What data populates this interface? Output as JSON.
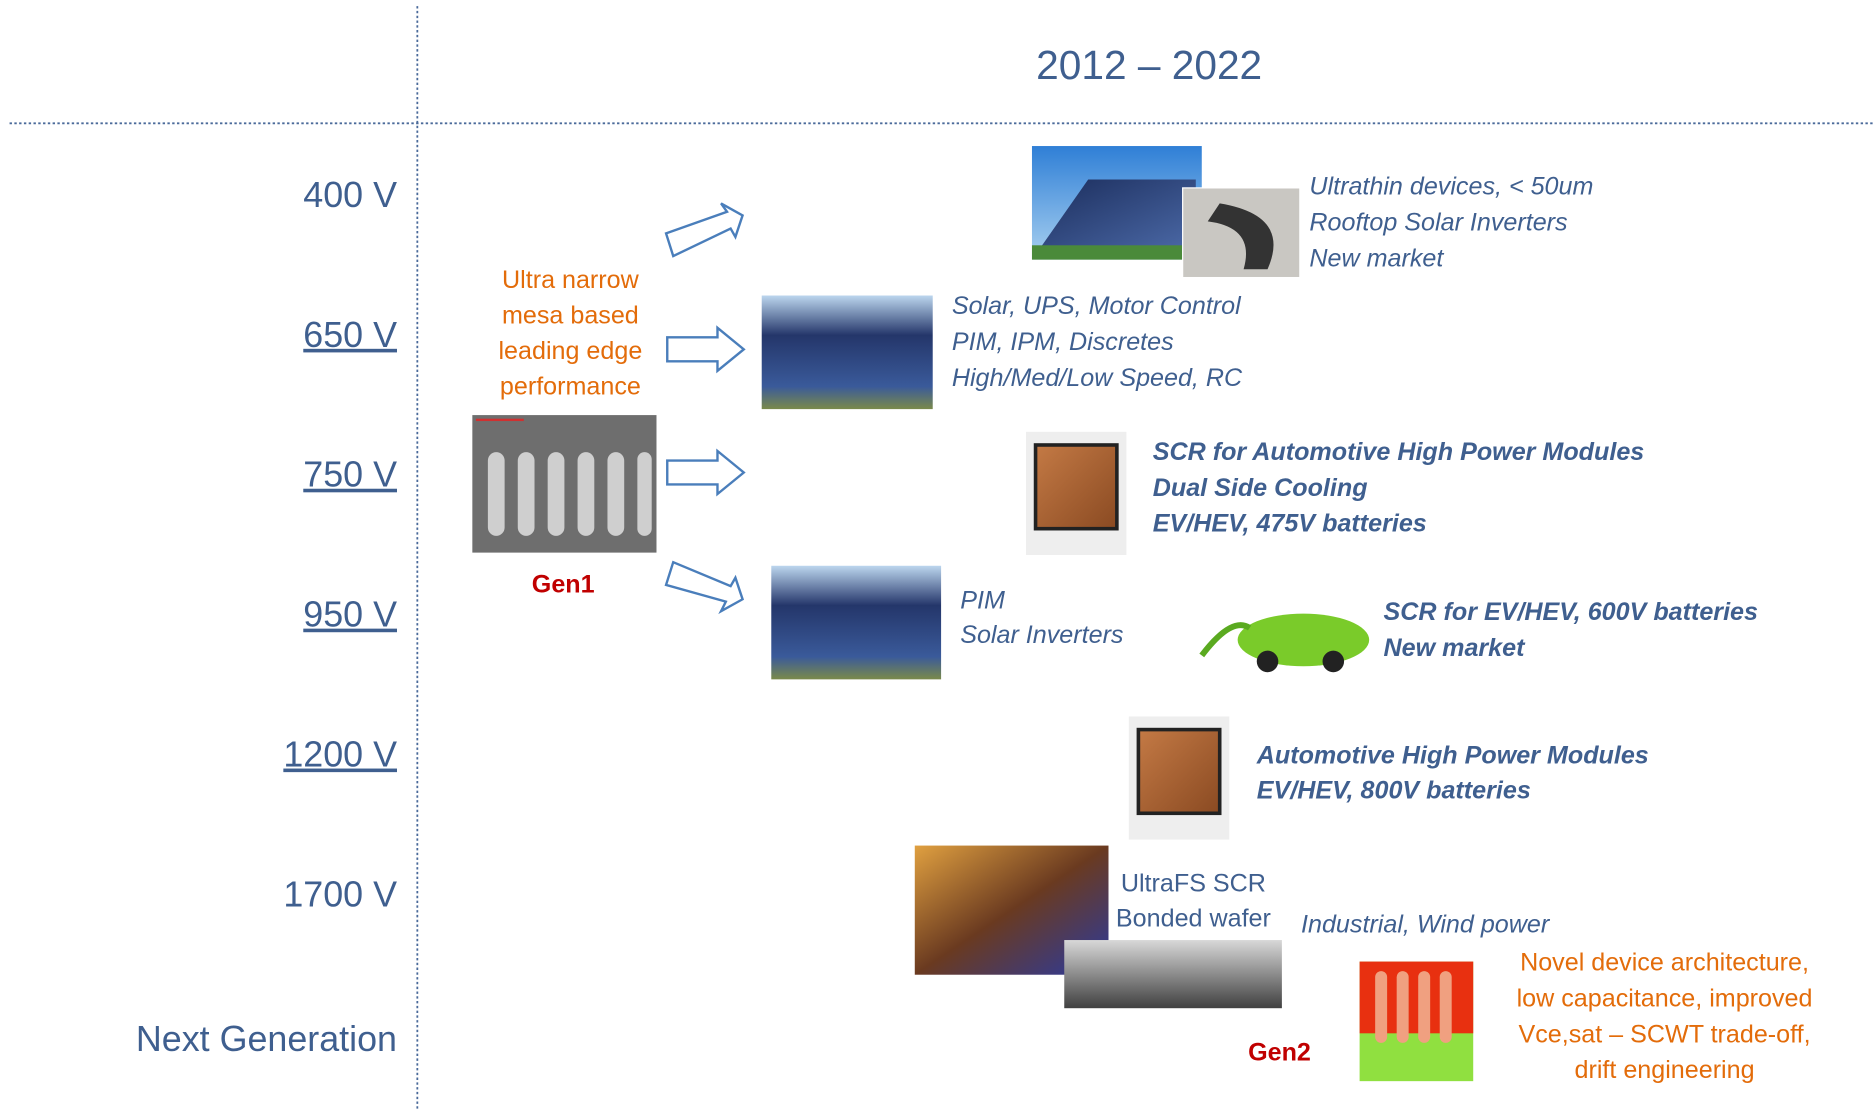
{
  "header": {
    "title": "2012 – 2022"
  },
  "voltages": [
    "400 V",
    "650 V",
    "750 V",
    "950 V",
    "1200 V",
    "1700 V",
    "Next Generation"
  ],
  "gen1": {
    "label": "Gen1",
    "description": [
      "Ultra narrow",
      "mesa based",
      "leading edge",
      "performance"
    ]
  },
  "applications": [
    {
      "lines": [
        "Ultrathin devices, < 50um",
        "Rooftop Solar Inverters",
        "New market"
      ]
    },
    {
      "lines": [
        "Solar, UPS, Motor Control",
        "PIM, IPM, Discretes",
        "High/Med/Low Speed, RC"
      ]
    },
    {
      "lines": [
        "SCR for Automotive High Power Modules",
        "Dual Side Cooling",
        "EV/HEV, 475V batteries"
      ]
    },
    {
      "lines": [
        "PIM",
        "Solar Inverters"
      ]
    },
    {
      "lines": [
        "SCR for EV/HEV, 600V batteries",
        "New market"
      ]
    },
    {
      "lines": [
        "Automotive High Power Modules",
        "EV/HEV, 800V batteries"
      ]
    },
    {
      "lines": [
        "UltraFS SCR",
        "Bonded wafer"
      ]
    },
    {
      "lines": [
        "Industrial, Wind power"
      ]
    }
  ],
  "gen2": {
    "label": "Gen2",
    "description": [
      "Novel device architecture,",
      "low capacitance, improved",
      "Vce,sat – SCWT trade-off,",
      "drift engineering"
    ]
  }
}
